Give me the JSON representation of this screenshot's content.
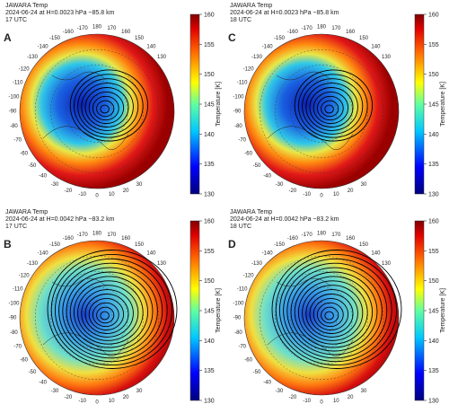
{
  "panels": [
    {
      "letter": "A",
      "title": [
        "JAWARA Temp",
        "2024-06-24 at H=0.0023 hPa ~85.8 km",
        "17 UTC"
      ],
      "colorbar": {
        "label": "Temperature [K]",
        "range": [
          130,
          160
        ],
        "ticks": [
          130,
          135,
          140,
          145,
          150,
          155,
          160
        ]
      },
      "longitude_labels": [
        -170,
        -160,
        -150,
        -140,
        -130,
        -120,
        -110,
        -100,
        -90,
        -80,
        -70,
        -60,
        -50,
        -40,
        -30,
        -20,
        -10,
        0,
        10,
        20,
        30,
        130,
        140,
        150,
        160,
        170,
        180
      ]
    },
    {
      "letter": "B",
      "title": [
        "JAWARA Temp",
        "2024-06-24 at H=0.0042 hPa ~83.2 km",
        "17 UTC"
      ],
      "colorbar": {
        "label": "Temperature [K]",
        "range": [
          130,
          160
        ],
        "ticks": [
          130,
          135,
          140,
          145,
          150,
          155,
          160
        ]
      },
      "longitude_labels": [
        -170,
        -160,
        -150,
        -140,
        -130,
        -120,
        -110,
        -100,
        -90,
        -80,
        -70,
        -60,
        -50,
        -40,
        -30,
        -20,
        -10,
        0,
        10,
        20,
        30,
        130,
        140,
        150,
        160,
        170,
        180
      ]
    },
    {
      "letter": "C",
      "title": [
        "JAWARA Temp",
        "2024-06-24 at H=0.0023 hPa ~85.8 km",
        "18 UTC"
      ],
      "colorbar": {
        "label": "Temperature [K]",
        "range": [
          130,
          160
        ],
        "ticks": [
          130,
          135,
          140,
          145,
          150,
          155,
          160
        ]
      },
      "longitude_labels": [
        -170,
        -160,
        -150,
        -140,
        -130,
        -120,
        -110,
        -100,
        -90,
        -80,
        -70,
        -60,
        -50,
        -40,
        -30,
        -20,
        -10,
        0,
        10,
        20,
        30,
        130,
        140,
        150,
        160,
        170,
        180
      ]
    },
    {
      "letter": "D",
      "title": [
        "JAWARA Temp",
        "2024-06-24 at H=0.0042 hPa ~83.2 km",
        "18 UTC"
      ],
      "colorbar": {
        "label": "Temperature [K]",
        "range": [
          130,
          160
        ],
        "ticks": [
          130,
          135,
          140,
          145,
          150,
          155,
          160
        ]
      },
      "longitude_labels": [
        -170,
        -160,
        -150,
        -140,
        -130,
        -120,
        -110,
        -100,
        -90,
        -80,
        -70,
        -60,
        -50,
        -40,
        -30,
        -20,
        -10,
        0,
        10,
        20,
        30,
        130,
        140,
        150,
        160,
        170,
        180
      ]
    }
  ]
}
